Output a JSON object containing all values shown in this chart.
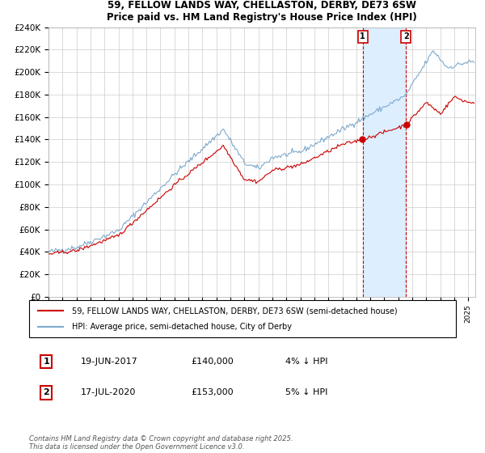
{
  "title": "59, FELLOW LANDS WAY, CHELLASTON, DERBY, DE73 6SW",
  "subtitle": "Price paid vs. HM Land Registry's House Price Index (HPI)",
  "legend_line1": "59, FELLOW LANDS WAY, CHELLASTON, DERBY, DE73 6SW (semi-detached house)",
  "legend_line2": "HPI: Average price, semi-detached house, City of Derby",
  "ann1_label": "1",
  "ann1_date": "19-JUN-2017",
  "ann1_price": "£140,000",
  "ann1_pct": "4% ↓ HPI",
  "ann1_t": 2017.458,
  "ann1_price_val": 140000,
  "ann2_label": "2",
  "ann2_date": "17-JUL-2020",
  "ann2_price": "£153,000",
  "ann2_pct": "5% ↓ HPI",
  "ann2_t": 2020.542,
  "ann2_price_val": 153000,
  "footer": "Contains HM Land Registry data © Crown copyright and database right 2025.\nThis data is licensed under the Open Government Licence v3.0.",
  "red_color": "#cc0000",
  "blue_color": "#80aacc",
  "shade_color": "#ddeeff",
  "ylim": [
    0,
    240000
  ],
  "yticks": [
    0,
    20000,
    40000,
    60000,
    80000,
    100000,
    120000,
    140000,
    160000,
    180000,
    200000,
    220000,
    240000
  ],
  "ytick_labels": [
    "£0",
    "£20K",
    "£40K",
    "£60K",
    "£80K",
    "£100K",
    "£120K",
    "£140K",
    "£160K",
    "£180K",
    "£200K",
    "£220K",
    "£240K"
  ],
  "xlim_start": 1995.0,
  "xlim_end": 2025.5,
  "background_color": "#ffffff",
  "plot_bg_color": "#ffffff",
  "grid_color": "#cccccc"
}
